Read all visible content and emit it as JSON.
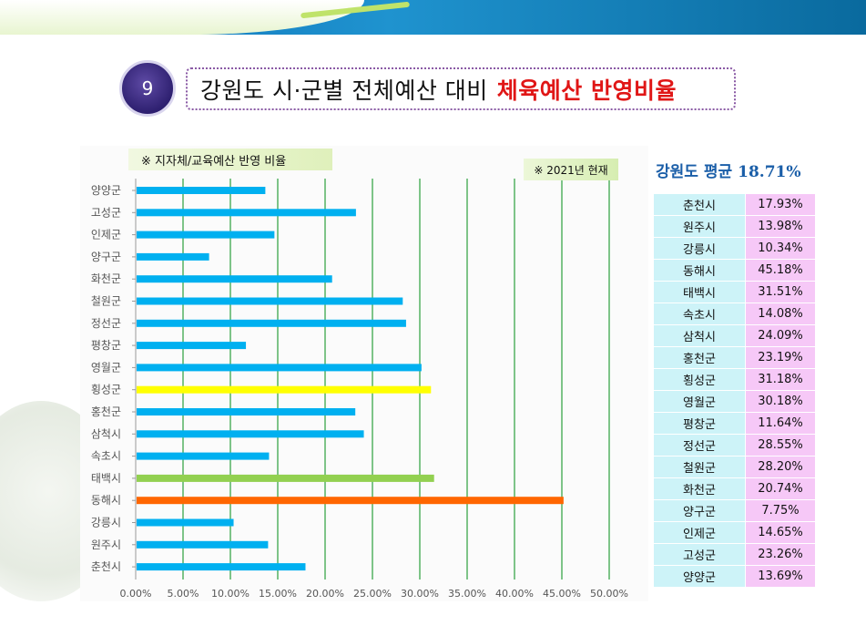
{
  "slide": {
    "badge_number": "9",
    "title_part1": "강원도 시·군별 전체예산 대비",
    "title_part2": "체육예산 반영비율"
  },
  "notes": {
    "left": "※ 지자체/교육예산 반영 비율",
    "right": "※ 2021년 현재"
  },
  "average": {
    "label": "강원도 평균",
    "value": "18.71%"
  },
  "table": [
    {
      "name": "춘천시",
      "value": "17.93%"
    },
    {
      "name": "원주시",
      "value": "13.98%"
    },
    {
      "name": "강릉시",
      "value": "10.34%"
    },
    {
      "name": "동해시",
      "value": "45.18%"
    },
    {
      "name": "태백시",
      "value": "31.51%"
    },
    {
      "name": "속초시",
      "value": "14.08%"
    },
    {
      "name": "삼척시",
      "value": "24.09%"
    },
    {
      "name": "홍천군",
      "value": "23.19%"
    },
    {
      "name": "횡성군",
      "value": "31.18%"
    },
    {
      "name": "영월군",
      "value": "30.18%"
    },
    {
      "name": "평창군",
      "value": "11.64%"
    },
    {
      "name": "정선군",
      "value": "28.55%"
    },
    {
      "name": "철원군",
      "value": "28.20%"
    },
    {
      "name": "화천군",
      "value": "20.74%"
    },
    {
      "name": "양구군",
      "value": "7.75%"
    },
    {
      "name": "인제군",
      "value": "14.65%"
    },
    {
      "name": "고성군",
      "value": "23.26%"
    },
    {
      "name": "양양군",
      "value": "13.69%"
    }
  ],
  "chart_data": {
    "type": "bar",
    "orientation": "horizontal",
    "categories": [
      "양양군",
      "고성군",
      "인제군",
      "양구군",
      "화천군",
      "철원군",
      "정선군",
      "평창군",
      "영월군",
      "횡성군",
      "홍천군",
      "삼척시",
      "속초시",
      "태백시",
      "동해시",
      "강릉시",
      "원주시",
      "춘천시"
    ],
    "values": [
      13.69,
      23.26,
      14.65,
      7.75,
      20.74,
      28.2,
      28.55,
      11.64,
      30.18,
      31.18,
      23.19,
      24.09,
      14.08,
      31.51,
      45.18,
      10.34,
      13.98,
      17.93
    ],
    "bar_colors": [
      "#00b0f0",
      "#00b0f0",
      "#00b0f0",
      "#00b0f0",
      "#00b0f0",
      "#00b0f0",
      "#00b0f0",
      "#00b0f0",
      "#00b0f0",
      "#ffff00",
      "#00b0f0",
      "#00b0f0",
      "#00b0f0",
      "#92d050",
      "#ff6600",
      "#00b0f0",
      "#00b0f0",
      "#00b0f0"
    ],
    "xlim": [
      0,
      50
    ],
    "xticks": [
      "0.00%",
      "5.00%",
      "10.00%",
      "15.00%",
      "20.00%",
      "25.00%",
      "30.00%",
      "35.00%",
      "40.00%",
      "45.00%",
      "50.00%"
    ],
    "grid": "vertical",
    "grid_color": "#3aa64a"
  }
}
